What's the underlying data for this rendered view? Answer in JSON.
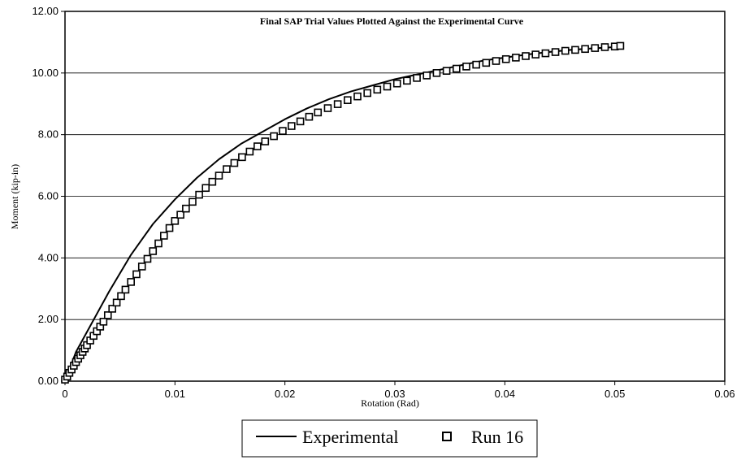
{
  "chart_data": {
    "type": "line",
    "title": "Final SAP Trial Values Plotted Against the Experimental Curve",
    "xlabel": "Rotation (Rad)",
    "ylabel": "Moment (kip-in)",
    "xlim": [
      0,
      0.06
    ],
    "ylim": [
      0,
      12
    ],
    "x_ticks": [
      0,
      0.01,
      0.02,
      0.03,
      0.04,
      0.05,
      0.06
    ],
    "x_tick_labels": [
      "0",
      "0.01",
      "0.02",
      "0.03",
      "0.04",
      "0.05",
      "0.06"
    ],
    "y_ticks": [
      0,
      2,
      4,
      6,
      8,
      10,
      12
    ],
    "y_tick_labels": [
      "0.00",
      "2.00",
      "4.00",
      "6.00",
      "8.00",
      "10.00",
      "12.00"
    ],
    "grid": "horizontal major gridlines",
    "legend_position": "bottom",
    "series": [
      {
        "name": "Experimental",
        "style": "solid line",
        "color": "#000000",
        "x": [
          0,
          0.001,
          0.002,
          0.003,
          0.004,
          0.005,
          0.006,
          0.007,
          0.008,
          0.009,
          0.01,
          0.012,
          0.014,
          0.016,
          0.018,
          0.02,
          0.022,
          0.024,
          0.026,
          0.028,
          0.03,
          0.032,
          0.034,
          0.036,
          0.038,
          0.04,
          0.042,
          0.044,
          0.046,
          0.048,
          0.0505
        ],
        "y": [
          0,
          0.95,
          1.6,
          2.25,
          2.9,
          3.5,
          4.1,
          4.6,
          5.1,
          5.5,
          5.9,
          6.6,
          7.2,
          7.7,
          8.1,
          8.5,
          8.85,
          9.15,
          9.4,
          9.6,
          9.8,
          9.95,
          10.1,
          10.25,
          10.4,
          10.5,
          10.6,
          10.68,
          10.75,
          10.8,
          10.85
        ]
      },
      {
        "name": "Run 16",
        "style": "hollow square markers",
        "color": "#000000",
        "x": [
          0,
          0.0002,
          0.0004,
          0.0006,
          0.0008,
          0.001,
          0.0012,
          0.0014,
          0.0016,
          0.0018,
          0.002,
          0.0023,
          0.0026,
          0.0029,
          0.0032,
          0.0035,
          0.0039,
          0.0043,
          0.0047,
          0.0051,
          0.0055,
          0.006,
          0.0065,
          0.007,
          0.0075,
          0.008,
          0.0085,
          0.009,
          0.0095,
          0.01,
          0.0105,
          0.011,
          0.0116,
          0.0122,
          0.0128,
          0.0134,
          0.014,
          0.0147,
          0.0154,
          0.0161,
          0.0168,
          0.0175,
          0.0182,
          0.019,
          0.0198,
          0.0206,
          0.0214,
          0.0222,
          0.023,
          0.0239,
          0.0248,
          0.0257,
          0.0266,
          0.0275,
          0.0284,
          0.0293,
          0.0302,
          0.0311,
          0.032,
          0.0329,
          0.0338,
          0.0347,
          0.0356,
          0.0365,
          0.0374,
          0.0383,
          0.0392,
          0.0401,
          0.041,
          0.0419,
          0.0428,
          0.0437,
          0.0446,
          0.0455,
          0.0464,
          0.0473,
          0.0482,
          0.0491,
          0.05,
          0.0505
        ],
        "y": [
          0.05,
          0.15,
          0.27,
          0.38,
          0.5,
          0.62,
          0.73,
          0.84,
          0.95,
          1.06,
          1.17,
          1.32,
          1.47,
          1.62,
          1.77,
          1.93,
          2.14,
          2.35,
          2.55,
          2.76,
          2.97,
          3.22,
          3.47,
          3.72,
          3.97,
          4.22,
          4.47,
          4.72,
          4.97,
          5.2,
          5.4,
          5.6,
          5.82,
          6.05,
          6.27,
          6.47,
          6.67,
          6.88,
          7.08,
          7.27,
          7.45,
          7.62,
          7.78,
          7.95,
          8.12,
          8.28,
          8.43,
          8.58,
          8.72,
          8.86,
          8.99,
          9.12,
          9.24,
          9.35,
          9.46,
          9.56,
          9.66,
          9.75,
          9.84,
          9.92,
          10.0,
          10.07,
          10.14,
          10.21,
          10.27,
          10.33,
          10.39,
          10.45,
          10.5,
          10.55,
          10.6,
          10.64,
          10.68,
          10.72,
          10.75,
          10.78,
          10.81,
          10.84,
          10.86,
          10.88
        ]
      }
    ]
  }
}
